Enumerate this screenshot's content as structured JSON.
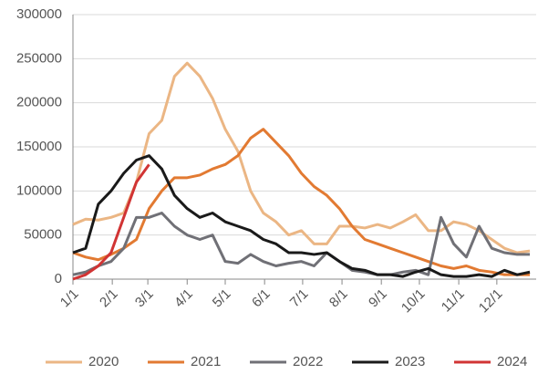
{
  "chart_data": {
    "type": "line",
    "x": [
      0,
      10,
      20,
      30,
      40,
      50,
      60,
      70,
      80,
      90,
      100,
      110,
      120,
      130,
      140,
      150,
      160,
      170,
      180,
      190,
      200,
      210,
      220,
      230,
      240,
      250,
      260,
      270,
      280,
      290,
      300,
      310,
      320,
      330,
      340,
      350,
      360
    ],
    "xlim": [
      0,
      365
    ],
    "xticks": [
      {
        "value": 0,
        "label": "1/1"
      },
      {
        "value": 31,
        "label": "2/1"
      },
      {
        "value": 59,
        "label": "3/1"
      },
      {
        "value": 90,
        "label": "4/1"
      },
      {
        "value": 120,
        "label": "5/1"
      },
      {
        "value": 151,
        "label": "6/1"
      },
      {
        "value": 181,
        "label": "7/1"
      },
      {
        "value": 212,
        "label": "8/1"
      },
      {
        "value": 243,
        "label": "9/1"
      },
      {
        "value": 273,
        "label": "10/1"
      },
      {
        "value": 304,
        "label": "11/1"
      },
      {
        "value": 334,
        "label": "12/1"
      }
    ],
    "ylim": [
      0,
      300000
    ],
    "yticks": [
      0,
      50000,
      100000,
      150000,
      200000,
      250000,
      300000
    ],
    "grid": true,
    "legend": "bottom",
    "series": [
      {
        "name": "2020",
        "color": "#EBB684",
        "values": [
          62000,
          68000,
          67000,
          70000,
          75000,
          110000,
          165000,
          180000,
          230000,
          245000,
          230000,
          205000,
          170000,
          145000,
          100000,
          75000,
          65000,
          50000,
          55000,
          40000,
          40000,
          60000,
          60000,
          58000,
          62000,
          58000,
          65000,
          73000,
          55000,
          55000,
          65000,
          62000,
          55000,
          45000,
          35000,
          30000,
          32000
        ]
      },
      {
        "name": "2021",
        "color": "#E27A32",
        "values": [
          30000,
          25000,
          22000,
          28000,
          35000,
          45000,
          80000,
          100000,
          115000,
          115000,
          118000,
          125000,
          130000,
          140000,
          160000,
          170000,
          155000,
          140000,
          120000,
          105000,
          95000,
          80000,
          60000,
          45000,
          40000,
          35000,
          30000,
          25000,
          20000,
          15000,
          12000,
          15000,
          10000,
          8000,
          5000,
          5000,
          5000
        ]
      },
      {
        "name": "2022",
        "color": "#707076",
        "values": [
          5000,
          8000,
          15000,
          20000,
          35000,
          70000,
          70000,
          75000,
          60000,
          50000,
          45000,
          50000,
          20000,
          18000,
          28000,
          20000,
          15000,
          18000,
          20000,
          15000,
          30000,
          20000,
          10000,
          8000,
          5000,
          5000,
          8000,
          10000,
          5000,
          70000,
          40000,
          25000,
          60000,
          35000,
          30000,
          28000,
          28000
        ]
      },
      {
        "name": "2023",
        "color": "#1a1a1a",
        "values": [
          30000,
          35000,
          85000,
          100000,
          120000,
          135000,
          140000,
          125000,
          95000,
          80000,
          70000,
          75000,
          65000,
          60000,
          55000,
          45000,
          40000,
          30000,
          30000,
          28000,
          30000,
          20000,
          12000,
          10000,
          5000,
          5000,
          3000,
          8000,
          12000,
          5000,
          3000,
          3000,
          5000,
          3000,
          10000,
          5000,
          8000
        ]
      },
      {
        "name": "2024",
        "color": "#D13434",
        "values": [
          0,
          5000,
          15000,
          30000,
          70000,
          110000,
          130000,
          null,
          null,
          null,
          null,
          null,
          null,
          null,
          null,
          null,
          null,
          null,
          null,
          null,
          null,
          null,
          null,
          null,
          null,
          null,
          null,
          null,
          null,
          null,
          null,
          null,
          null,
          null,
          null,
          null,
          null
        ]
      }
    ]
  }
}
